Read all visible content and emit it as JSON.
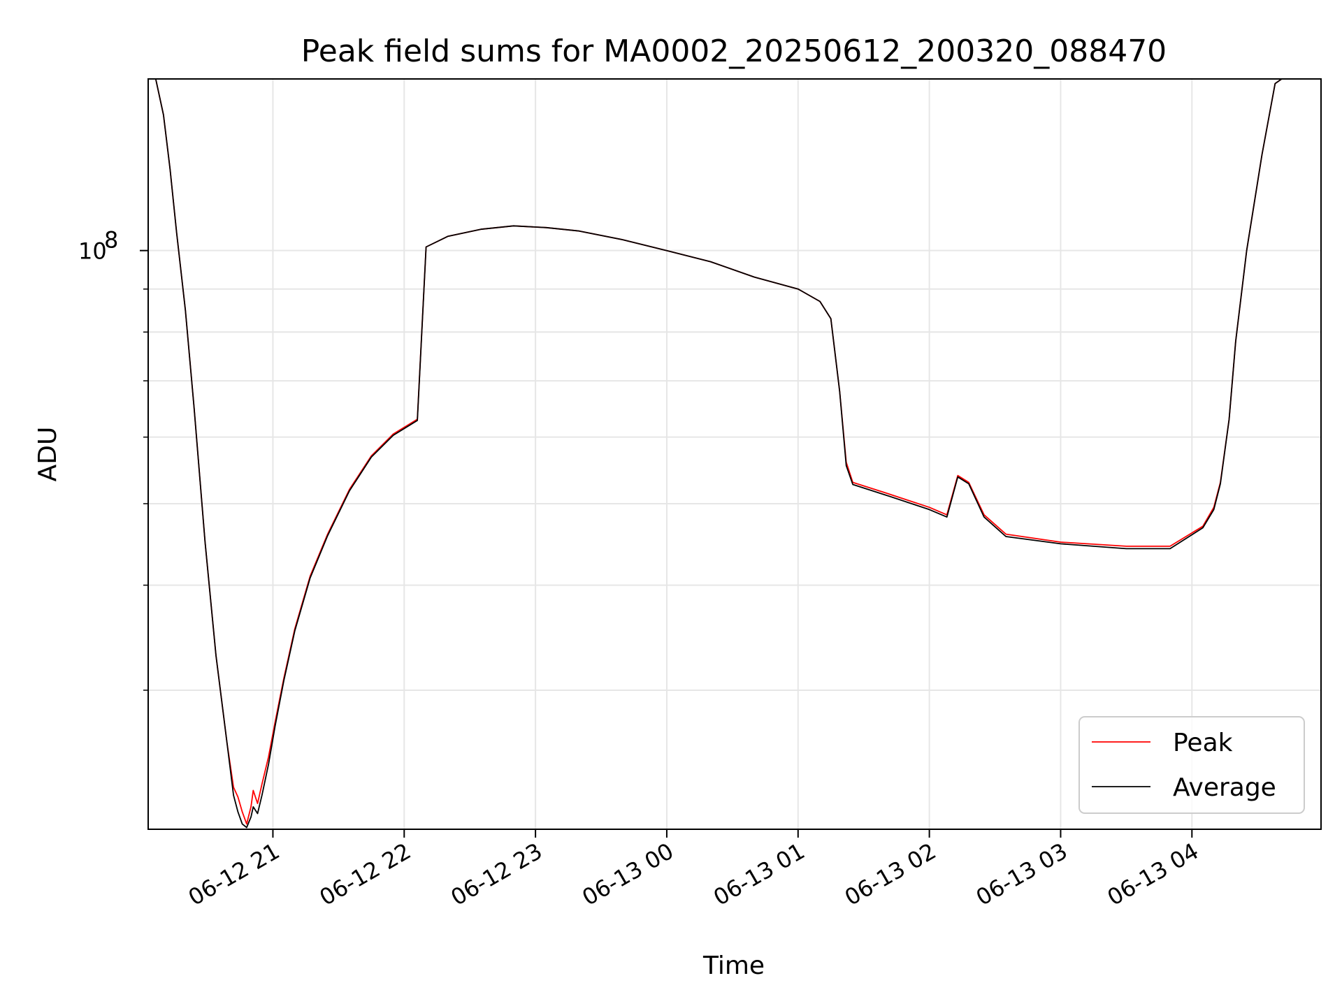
{
  "chart_data": {
    "type": "line",
    "title": "Peak field sums for MA0002_20250612_200320_088470",
    "xlabel": "Time",
    "ylabel": "ADU",
    "y_scale": "log",
    "xlim": [
      "2025-06-12T20:03",
      "2025-06-13T04:59"
    ],
    "ylim": [
      20500000.0,
      160000000.0
    ],
    "x_ticks": [
      {
        "t": "2025-06-12T21:00",
        "label": "06-12 21"
      },
      {
        "t": "2025-06-12T22:00",
        "label": "06-12 22"
      },
      {
        "t": "2025-06-12T23:00",
        "label": "06-12 23"
      },
      {
        "t": "2025-06-13T00:00",
        "label": "06-13 00"
      },
      {
        "t": "2025-06-13T01:00",
        "label": "06-13 01"
      },
      {
        "t": "2025-06-13T02:00",
        "label": "06-13 02"
      },
      {
        "t": "2025-06-13T03:00",
        "label": "06-13 03"
      },
      {
        "t": "2025-06-13T04:00",
        "label": "06-13 04"
      }
    ],
    "y_major_tick": {
      "value": 100000000.0,
      "label_base": "10",
      "label_exp": "8"
    },
    "y_minor_ticks": [
      30000000.0,
      40000000.0,
      50000000.0,
      60000000.0,
      70000000.0,
      80000000.0,
      90000000.0,
      200000000.0
    ],
    "grid": true,
    "legend_position": "lower-right",
    "series": [
      {
        "name": "Peak",
        "color": "#ff0000",
        "points": [
          [
            "2025-06-12T20:06",
            162000000.0
          ],
          [
            "2025-06-12T20:10",
            145000000.0
          ],
          [
            "2025-06-12T20:13",
            125000000.0
          ],
          [
            "2025-06-12T20:16",
            105000000.0
          ],
          [
            "2025-06-12T20:20",
            85000000.0
          ],
          [
            "2025-06-12T20:24",
            65000000.0
          ],
          [
            "2025-06-12T20:29",
            45000000.0
          ],
          [
            "2025-06-12T20:34",
            33000000.0
          ],
          [
            "2025-06-12T20:39",
            26000000.0
          ],
          [
            "2025-06-12T20:42",
            23000000.0
          ],
          [
            "2025-06-12T20:44",
            22400000.0
          ],
          [
            "2025-06-12T20:46",
            21500000.0
          ],
          [
            "2025-06-12T20:48",
            20800000.0
          ],
          [
            "2025-06-12T20:50",
            21800000.0
          ],
          [
            "2025-06-12T20:51",
            22800000.0
          ],
          [
            "2025-06-12T20:53",
            22000000.0
          ],
          [
            "2025-06-12T20:55",
            23200000.0
          ],
          [
            "2025-06-12T20:58",
            25000000.0
          ],
          [
            "2025-06-12T21:01",
            27500000.0
          ],
          [
            "2025-06-12T21:05",
            31000000.0
          ],
          [
            "2025-06-12T21:10",
            35500000.0
          ],
          [
            "2025-06-12T21:17",
            41000000.0
          ],
          [
            "2025-06-12T21:25",
            46000000.0
          ],
          [
            "2025-06-12T21:35",
            52000000.0
          ],
          [
            "2025-06-12T21:45",
            57000000.0
          ],
          [
            "2025-06-12T21:55",
            60500000.0
          ],
          [
            "2025-06-12T22:06",
            63000000.0
          ],
          [
            "2025-06-12T22:10",
            101000000.0
          ],
          [
            "2025-06-12T22:20",
            104000000.0
          ],
          [
            "2025-06-12T22:35",
            106000000.0
          ],
          [
            "2025-06-12T22:50",
            107000000.0
          ],
          [
            "2025-06-12T23:05",
            106500000.0
          ],
          [
            "2025-06-12T23:20",
            105500000.0
          ],
          [
            "2025-06-12T23:40",
            103000000.0
          ],
          [
            "2025-06-13T00:00",
            100000000.0
          ],
          [
            "2025-06-13T00:20",
            97000000.0
          ],
          [
            "2025-06-13T00:40",
            93000000.0
          ],
          [
            "2025-06-13T01:00",
            90000000.0
          ],
          [
            "2025-06-13T01:10",
            87000000.0
          ],
          [
            "2025-06-13T01:15",
            83000000.0
          ],
          [
            "2025-06-13T01:19",
            68000000.0
          ],
          [
            "2025-06-13T01:22",
            56000000.0
          ],
          [
            "2025-06-13T01:25",
            53000000.0
          ],
          [
            "2025-06-13T01:40",
            51500000.0
          ],
          [
            "2025-06-13T02:00",
            49500000.0
          ],
          [
            "2025-06-13T02:08",
            48500000.0
          ],
          [
            "2025-06-13T02:13",
            54000000.0
          ],
          [
            "2025-06-13T02:18",
            53000000.0
          ],
          [
            "2025-06-13T02:25",
            48500000.0
          ],
          [
            "2025-06-13T02:35",
            46000000.0
          ],
          [
            "2025-06-13T03:00",
            45000000.0
          ],
          [
            "2025-06-13T03:30",
            44500000.0
          ],
          [
            "2025-06-13T03:50",
            44500000.0
          ],
          [
            "2025-06-13T04:05",
            47000000.0
          ],
          [
            "2025-06-13T04:10",
            49500000.0
          ],
          [
            "2025-06-13T04:13",
            53000000.0
          ],
          [
            "2025-06-13T04:17",
            63000000.0
          ],
          [
            "2025-06-13T04:20",
            78000000.0
          ],
          [
            "2025-06-13T04:25",
            100000000.0
          ],
          [
            "2025-06-13T04:32",
            130000000.0
          ],
          [
            "2025-06-13T04:38",
            158000000.0
          ],
          [
            "2025-06-13T04:44",
            162000000.0
          ],
          [
            "2025-06-13T04:59",
            162000000.0
          ]
        ]
      },
      {
        "name": "Average",
        "color": "#000000",
        "points": [
          [
            "2025-06-12T20:06",
            162000000.0
          ],
          [
            "2025-06-12T20:10",
            145000000.0
          ],
          [
            "2025-06-12T20:13",
            125000000.0
          ],
          [
            "2025-06-12T20:16",
            105000000.0
          ],
          [
            "2025-06-12T20:20",
            85000000.0
          ],
          [
            "2025-06-12T20:24",
            65000000.0
          ],
          [
            "2025-06-12T20:29",
            45000000.0
          ],
          [
            "2025-06-12T20:34",
            33000000.0
          ],
          [
            "2025-06-12T20:39",
            26000000.0
          ],
          [
            "2025-06-12T20:42",
            22500000.0
          ],
          [
            "2025-06-12T20:44",
            21500000.0
          ],
          [
            "2025-06-12T20:46",
            20800000.0
          ],
          [
            "2025-06-12T20:48",
            20600000.0
          ],
          [
            "2025-06-12T20:50",
            21200000.0
          ],
          [
            "2025-06-12T20:51",
            21800000.0
          ],
          [
            "2025-06-12T20:53",
            21400000.0
          ],
          [
            "2025-06-12T20:55",
            22500000.0
          ],
          [
            "2025-06-12T20:58",
            24500000.0
          ],
          [
            "2025-06-12T21:01",
            27200000.0
          ],
          [
            "2025-06-12T21:05",
            30800000.0
          ],
          [
            "2025-06-12T21:10",
            35300000.0
          ],
          [
            "2025-06-12T21:17",
            40800000.0
          ],
          [
            "2025-06-12T21:25",
            45800000.0
          ],
          [
            "2025-06-12T21:35",
            51800000.0
          ],
          [
            "2025-06-12T21:45",
            56800000.0
          ],
          [
            "2025-06-12T21:55",
            60300000.0
          ],
          [
            "2025-06-12T22:06",
            62800000.0
          ],
          [
            "2025-06-12T22:10",
            101000000.0
          ],
          [
            "2025-06-12T22:20",
            104000000.0
          ],
          [
            "2025-06-12T22:35",
            106000000.0
          ],
          [
            "2025-06-12T22:50",
            107000000.0
          ],
          [
            "2025-06-12T23:05",
            106500000.0
          ],
          [
            "2025-06-12T23:20",
            105500000.0
          ],
          [
            "2025-06-12T23:40",
            103000000.0
          ],
          [
            "2025-06-13T00:00",
            100000000.0
          ],
          [
            "2025-06-13T00:20",
            97000000.0
          ],
          [
            "2025-06-13T00:40",
            93000000.0
          ],
          [
            "2025-06-13T01:00",
            90000000.0
          ],
          [
            "2025-06-13T01:10",
            87000000.0
          ],
          [
            "2025-06-13T01:15",
            83000000.0
          ],
          [
            "2025-06-13T01:19",
            68000000.0
          ],
          [
            "2025-06-13T01:22",
            55500000.0
          ],
          [
            "2025-06-13T01:25",
            52700000.0
          ],
          [
            "2025-06-13T01:40",
            51200000.0
          ],
          [
            "2025-06-13T02:00",
            49200000.0
          ],
          [
            "2025-06-13T02:08",
            48200000.0
          ],
          [
            "2025-06-13T02:13",
            53800000.0
          ],
          [
            "2025-06-13T02:18",
            52800000.0
          ],
          [
            "2025-06-13T02:25",
            48200000.0
          ],
          [
            "2025-06-13T02:35",
            45700000.0
          ],
          [
            "2025-06-13T03:00",
            44800000.0
          ],
          [
            "2025-06-13T03:30",
            44200000.0
          ],
          [
            "2025-06-13T03:50",
            44200000.0
          ],
          [
            "2025-06-13T04:05",
            46800000.0
          ],
          [
            "2025-06-13T04:10",
            49200000.0
          ],
          [
            "2025-06-13T04:13",
            52800000.0
          ],
          [
            "2025-06-13T04:17",
            63000000.0
          ],
          [
            "2025-06-13T04:20",
            78000000.0
          ],
          [
            "2025-06-13T04:25",
            100000000.0
          ],
          [
            "2025-06-13T04:32",
            130000000.0
          ],
          [
            "2025-06-13T04:38",
            158000000.0
          ],
          [
            "2025-06-13T04:44",
            162000000.0
          ],
          [
            "2025-06-13T04:59",
            162000000.0
          ]
        ]
      }
    ]
  }
}
